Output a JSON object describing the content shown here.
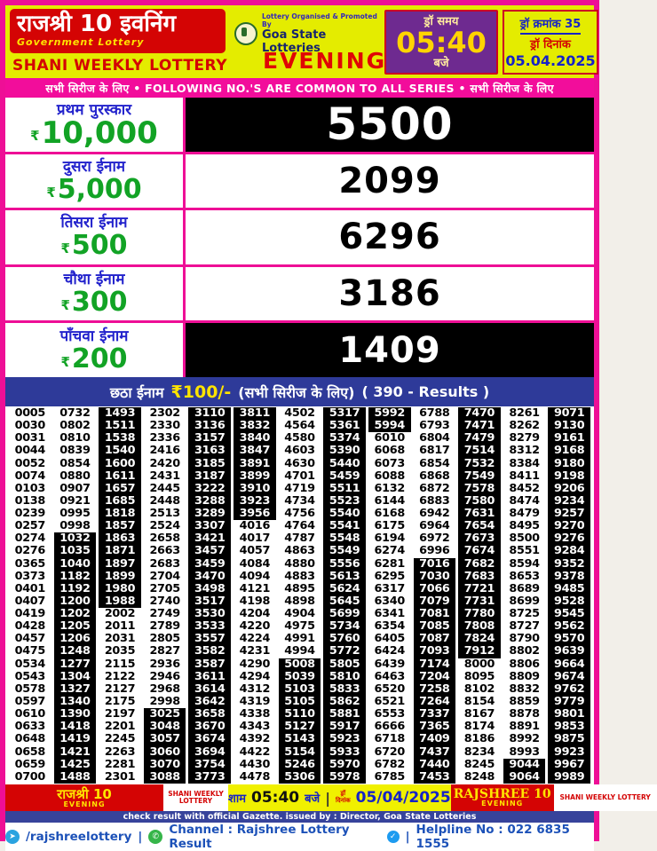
{
  "header": {
    "brand_title": "राजश्री 10 इवनिंग",
    "brand_subtitle": "Government Lottery",
    "lottery_name": "SHANI WEEKLY LOTTERY",
    "organiser_line1": "Lottery Organised & Promoted By",
    "organiser_line2": "Goa State Lotteries",
    "session": "EVENING",
    "draw_time_label": "ड्रॉ समय",
    "draw_time": "05:40",
    "draw_time_suffix": "बजे",
    "draw_no_line": "ड्रॉ क्रमांक 35",
    "draw_date_label": "ड्रॉ दिनांक",
    "draw_date": "05.04.2025"
  },
  "banner": {
    "text": "सभी सिरीज के लिए  •  FOLLOWING NO.'S ARE COMMON TO ALL SERIES  •  सभी सिरीज के लिए"
  },
  "prizes": [
    {
      "label": "प्रथम पुरस्कार",
      "currency": "₹",
      "amount": "10,000",
      "number": "5500",
      "inverted": true
    },
    {
      "label": "दुसरा ईनाम",
      "currency": "₹",
      "amount": "5,000",
      "number": "2099",
      "inverted": false
    },
    {
      "label": "तिसरा ईनाम",
      "currency": "₹",
      "amount": "500",
      "number": "6296",
      "inverted": false
    },
    {
      "label": "चौथा ईनाम",
      "currency": "₹",
      "amount": "300",
      "number": "3186",
      "inverted": false
    },
    {
      "label": "पाँचवा ईनाम",
      "currency": "₹",
      "amount": "200",
      "number": "1409",
      "inverted": true
    }
  ],
  "sixth_prize": {
    "label": "छठा ईनाम",
    "amount": "₹100/-",
    "series_note": "(सभी सिरीज के लिए)",
    "results_note": "( 390 - Results )"
  },
  "results_grid": {
    "columns": 13,
    "rows": 30,
    "numbers": [
      [
        "0005",
        "0732",
        "1493",
        "2302",
        "3110",
        "3811",
        "4502",
        "5317",
        "5992",
        "6788",
        "7470",
        "8261",
        "9071"
      ],
      [
        "0030",
        "0802",
        "1511",
        "2330",
        "3136",
        "3832",
        "4564",
        "5361",
        "5994",
        "6793",
        "7471",
        "8262",
        "9130"
      ],
      [
        "0031",
        "0810",
        "1538",
        "2336",
        "3157",
        "3840",
        "4580",
        "5374",
        "6010",
        "6804",
        "7479",
        "8279",
        "9161"
      ],
      [
        "0044",
        "0839",
        "1540",
        "2416",
        "3163",
        "3847",
        "4603",
        "5390",
        "6068",
        "6817",
        "7514",
        "8312",
        "9168"
      ],
      [
        "0052",
        "0854",
        "1600",
        "2420",
        "3185",
        "3891",
        "4630",
        "5440",
        "6073",
        "6854",
        "7532",
        "8384",
        "9180"
      ],
      [
        "0074",
        "0880",
        "1611",
        "2431",
        "3187",
        "3899",
        "4701",
        "5459",
        "6088",
        "6868",
        "7549",
        "8411",
        "9198"
      ],
      [
        "0103",
        "0907",
        "1657",
        "2445",
        "3222",
        "3910",
        "4719",
        "5511",
        "6132",
        "6872",
        "7578",
        "8452",
        "9206"
      ],
      [
        "0138",
        "0921",
        "1685",
        "2448",
        "3288",
        "3923",
        "4734",
        "5523",
        "6144",
        "6883",
        "7580",
        "8474",
        "9234"
      ],
      [
        "0239",
        "0995",
        "1818",
        "2513",
        "3289",
        "3956",
        "4756",
        "5540",
        "6168",
        "6942",
        "7631",
        "8479",
        "9257"
      ],
      [
        "0257",
        "0998",
        "1857",
        "2524",
        "3307",
        "4016",
        "4764",
        "5541",
        "6175",
        "6964",
        "7654",
        "8495",
        "9270"
      ],
      [
        "0274",
        "1032",
        "1863",
        "2658",
        "3421",
        "4017",
        "4787",
        "5548",
        "6194",
        "6972",
        "7673",
        "8500",
        "9276"
      ],
      [
        "0276",
        "1035",
        "1871",
        "2663",
        "3457",
        "4057",
        "4863",
        "5549",
        "6274",
        "6996",
        "7674",
        "8551",
        "9284"
      ],
      [
        "0365",
        "1040",
        "1897",
        "2683",
        "3459",
        "4084",
        "4880",
        "5556",
        "6281",
        "7016",
        "7682",
        "8594",
        "9352"
      ],
      [
        "0373",
        "1182",
        "1899",
        "2704",
        "3470",
        "4094",
        "4883",
        "5613",
        "6295",
        "7030",
        "7683",
        "8653",
        "9378"
      ],
      [
        "0401",
        "1192",
        "1980",
        "2705",
        "3498",
        "4121",
        "4895",
        "5624",
        "6317",
        "7066",
        "7721",
        "8689",
        "9485"
      ],
      [
        "0407",
        "1200",
        "1988",
        "2740",
        "3517",
        "4198",
        "4898",
        "5645",
        "6340",
        "7079",
        "7731",
        "8699",
        "9528"
      ],
      [
        "0419",
        "1202",
        "2002",
        "2749",
        "3530",
        "4204",
        "4904",
        "5699",
        "6341",
        "7081",
        "7780",
        "8725",
        "9545"
      ],
      [
        "0428",
        "1205",
        "2011",
        "2789",
        "3533",
        "4220",
        "4975",
        "5734",
        "6354",
        "7085",
        "7808",
        "8727",
        "9562"
      ],
      [
        "0457",
        "1206",
        "2031",
        "2805",
        "3557",
        "4224",
        "4991",
        "5760",
        "6405",
        "7087",
        "7824",
        "8790",
        "9570"
      ],
      [
        "0475",
        "1248",
        "2035",
        "2827",
        "3582",
        "4231",
        "4994",
        "5772",
        "6424",
        "7093",
        "7912",
        "8802",
        "9639"
      ],
      [
        "0534",
        "1277",
        "2115",
        "2936",
        "3587",
        "4290",
        "5008",
        "5805",
        "6439",
        "7174",
        "8000",
        "8806",
        "9664"
      ],
      [
        "0543",
        "1304",
        "2122",
        "2946",
        "3611",
        "4294",
        "5039",
        "5810",
        "6463",
        "7204",
        "8095",
        "8809",
        "9674"
      ],
      [
        "0578",
        "1327",
        "2127",
        "2968",
        "3614",
        "4312",
        "5103",
        "5833",
        "6520",
        "7258",
        "8102",
        "8832",
        "9762"
      ],
      [
        "0597",
        "1340",
        "2175",
        "2998",
        "3642",
        "4319",
        "5105",
        "5862",
        "6521",
        "7264",
        "8154",
        "8859",
        "9779"
      ],
      [
        "0610",
        "1390",
        "2197",
        "3025",
        "3658",
        "4338",
        "5110",
        "5881",
        "6553",
        "7337",
        "8167",
        "8878",
        "9801"
      ],
      [
        "0633",
        "1418",
        "2201",
        "3048",
        "3670",
        "4343",
        "5127",
        "5917",
        "6666",
        "7365",
        "8174",
        "8891",
        "9853"
      ],
      [
        "0648",
        "1419",
        "2245",
        "3057",
        "3674",
        "4392",
        "5143",
        "5923",
        "6718",
        "7409",
        "8186",
        "8992",
        "9875"
      ],
      [
        "0658",
        "1421",
        "2263",
        "3060",
        "3694",
        "4422",
        "5154",
        "5933",
        "6720",
        "7437",
        "8234",
        "8993",
        "9923"
      ],
      [
        "0659",
        "1425",
        "2281",
        "3070",
        "3754",
        "4430",
        "5246",
        "5970",
        "6782",
        "7440",
        "8245",
        "9044",
        "9967"
      ],
      [
        "0700",
        "1488",
        "2301",
        "3088",
        "3773",
        "4478",
        "5306",
        "5978",
        "6785",
        "7453",
        "8248",
        "9064",
        "9989"
      ]
    ]
  },
  "footer": {
    "brand_left_title": "राजश्री 10",
    "brand_left_session": "EVENING",
    "lottery_left": "SHANI WEEKLY LOTTERY",
    "time_label": "शाम",
    "time": "05:40",
    "time_suffix": "बजे",
    "date_label_line1": "ड्रॉ",
    "date_label_line2": "दिनांक",
    "date": "05/04/2025",
    "brand_right_title": "RAJSHREE 10",
    "brand_right_session": "EVENING",
    "lottery_right": "SHANI WEEKLY LOTTERY",
    "gazette_note": "check result with official Gazette. issued by : Director, Goa State Lotteries",
    "telegram_handle": "/rajshreelottery",
    "channel_text": "Channel : Rajshree Lottery Result",
    "helpline": "Helpline No : 022 6835 1555"
  },
  "colors": {
    "frame_magenta": "#ee0f96",
    "header_yellow": "#e4ec00",
    "brand_red": "#d40404",
    "time_purple": "#6e2a90",
    "navy_bar": "#2e3a99",
    "prize_label_blue": "#2222cc",
    "prize_amount_green": "#12a325",
    "footer_navy": "#37439b",
    "contact_blue": "#1c51b8",
    "highlight_black": "#000000"
  }
}
